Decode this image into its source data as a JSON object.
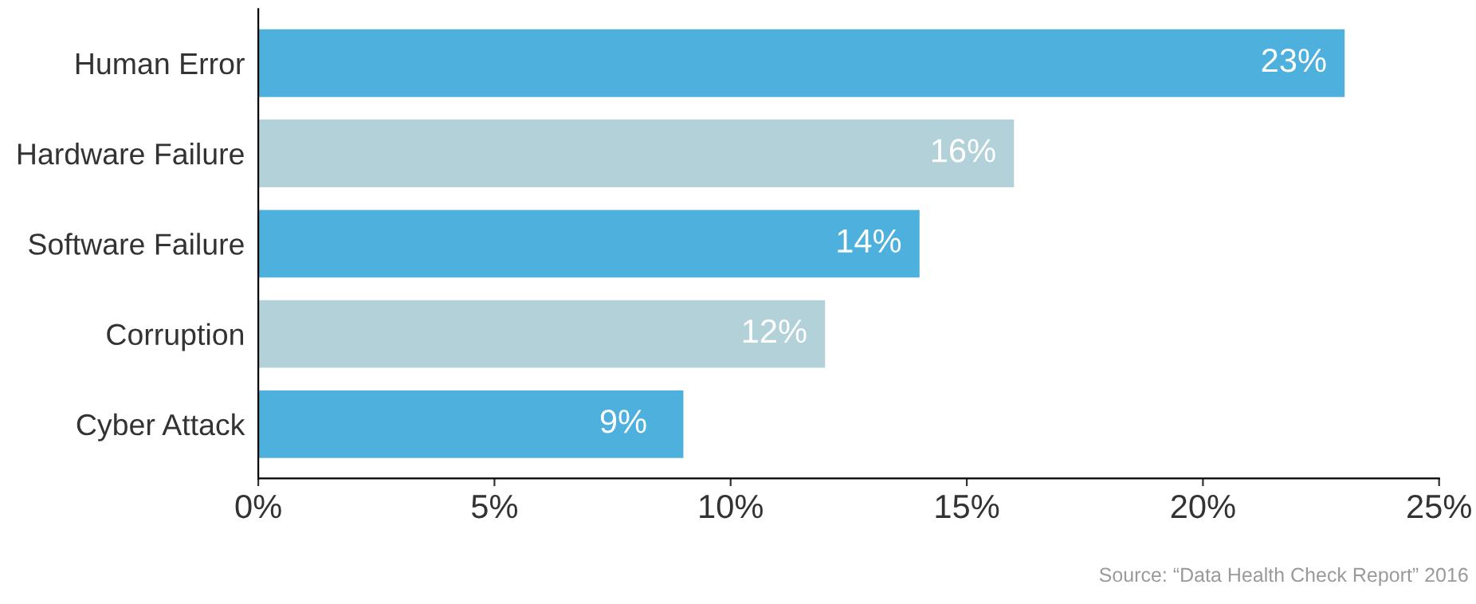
{
  "chart_data": {
    "type": "bar",
    "orientation": "horizontal",
    "categories": [
      "Human Error",
      "Hardware Failure",
      "Software Failure",
      "Corruption",
      "Cyber Attack"
    ],
    "values": [
      23,
      16,
      14,
      12,
      9
    ],
    "colors": [
      "#4eb0dc",
      "#b3d1d8",
      "#4eb0dc",
      "#b3d1d8",
      "#4eb0dc"
    ],
    "value_labels": [
      "23%",
      "16%",
      "14%",
      "12%",
      "9%"
    ],
    "xlim": [
      0,
      25
    ],
    "xticks": [
      {
        "value": 0,
        "label": "0%"
      },
      {
        "value": 5,
        "label": "5%"
      },
      {
        "value": 10,
        "label": "10%"
      },
      {
        "value": 15,
        "label": "15%"
      },
      {
        "value": 20,
        "label": "20%"
      },
      {
        "value": 25,
        "label": "25%"
      }
    ],
    "grid": false,
    "legend": false,
    "annotations": [
      "Source: “Data Health Check Report” 2016"
    ]
  }
}
